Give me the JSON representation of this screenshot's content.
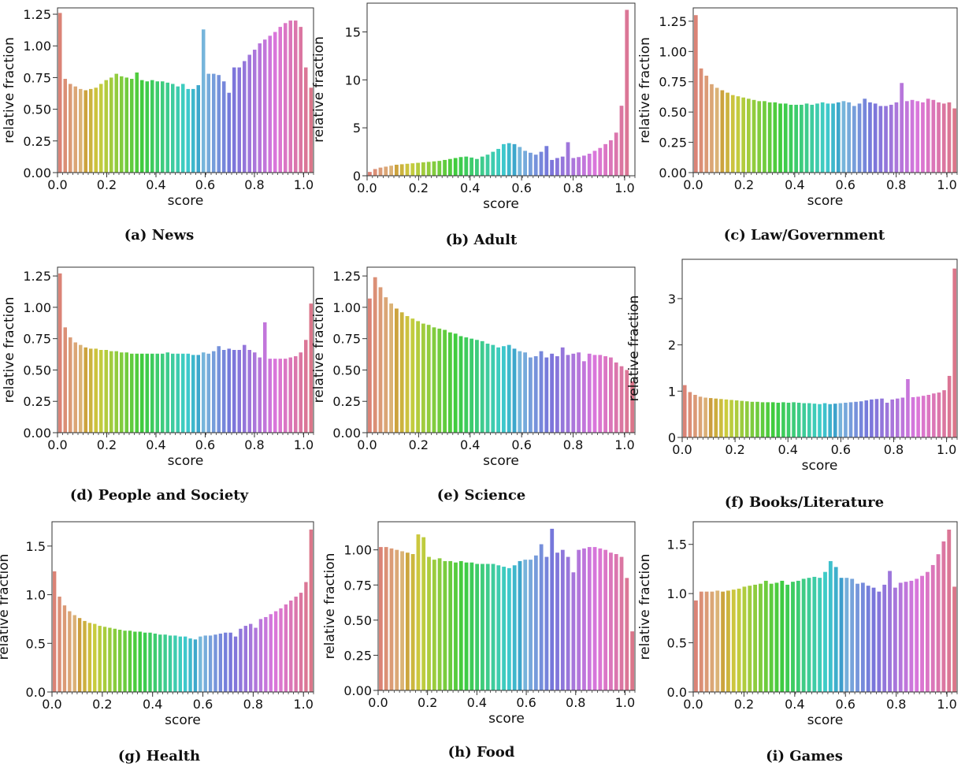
{
  "figure": {
    "xlabel": "score",
    "ylabel": "relative fraction",
    "captions": [
      "(a) News",
      "(b) Adult",
      "(c) Law/Government",
      "(d) People and Society",
      "(e) Science",
      "(f) Books/Literature",
      "(g) Health",
      "(h) Food",
      "(i) Games"
    ]
  },
  "chart_data": [
    {
      "type": "bar",
      "title": "(a) News",
      "xlabel": "score",
      "ylabel": "relative fraction",
      "xlim": [
        0,
        1.04
      ],
      "ylim": [
        0,
        1.3
      ],
      "xticks": [
        0.0,
        0.2,
        0.4,
        0.6,
        0.8,
        1.0
      ],
      "xtick_labels": [
        "0.0",
        "0.2",
        "0.4",
        "0.6",
        "0.8",
        "1.0"
      ],
      "yticks": [
        0,
        0.25,
        0.5,
        0.75,
        1.0,
        1.25
      ],
      "ytick_labels": [
        "0.00",
        "0.25",
        "0.50",
        "0.75",
        "1.00",
        "1.25"
      ],
      "values": [
        1.26,
        0.74,
        0.7,
        0.68,
        0.66,
        0.65,
        0.66,
        0.67,
        0.7,
        0.73,
        0.75,
        0.78,
        0.76,
        0.75,
        0.74,
        0.79,
        0.73,
        0.72,
        0.73,
        0.72,
        0.72,
        0.71,
        0.7,
        0.68,
        0.7,
        0.66,
        0.66,
        0.69,
        1.13,
        0.78,
        0.78,
        0.77,
        0.72,
        0.63,
        0.83,
        0.83,
        0.88,
        0.93,
        0.97,
        1.02,
        1.05,
        1.08,
        1.11,
        1.15,
        1.18,
        1.2,
        1.2,
        1.15,
        0.83,
        0.67
      ]
    },
    {
      "type": "bar",
      "title": "(b) Adult",
      "xlabel": "score",
      "ylabel": "relative fraction",
      "xlim": [
        0,
        1.04
      ],
      "ylim": [
        0,
        18
      ],
      "xticks": [
        0.0,
        0.2,
        0.4,
        0.6,
        0.8,
        1.0
      ],
      "xtick_labels": [
        "0.0",
        "0.2",
        "0.4",
        "0.6",
        "0.8",
        "1.0"
      ],
      "yticks": [
        0,
        5,
        10,
        15
      ],
      "ytick_labels": [
        "0",
        "5",
        "10",
        "15"
      ],
      "values": [
        0.4,
        0.7,
        0.85,
        0.95,
        1.05,
        1.15,
        1.2,
        1.25,
        1.3,
        1.35,
        1.4,
        1.45,
        1.5,
        1.55,
        1.65,
        1.75,
        1.85,
        1.95,
        2.0,
        1.9,
        1.75,
        2.0,
        2.2,
        2.5,
        2.8,
        3.3,
        3.4,
        3.3,
        3.0,
        2.6,
        2.4,
        2.2,
        2.5,
        3.1,
        1.65,
        1.85,
        2.0,
        3.5,
        1.85,
        1.95,
        2.1,
        2.3,
        2.6,
        2.9,
        3.3,
        3.7,
        4.5,
        7.3,
        17.3,
        0
      ]
    },
    {
      "type": "bar",
      "title": "(c) Law/Government",
      "xlabel": "score",
      "ylabel": "relative fraction",
      "xlim": [
        0,
        1.04
      ],
      "ylim": [
        0,
        1.36
      ],
      "xticks": [
        0.0,
        0.2,
        0.4,
        0.6,
        0.8,
        1.0
      ],
      "xtick_labels": [
        "0.0",
        "0.2",
        "0.4",
        "0.6",
        "0.8",
        "1.0"
      ],
      "yticks": [
        0,
        0.25,
        0.5,
        0.75,
        1.0,
        1.25
      ],
      "ytick_labels": [
        "0.00",
        "0.25",
        "0.50",
        "0.75",
        "1.00",
        "1.25"
      ],
      "values": [
        1.3,
        0.86,
        0.8,
        0.73,
        0.7,
        0.68,
        0.66,
        0.64,
        0.63,
        0.62,
        0.61,
        0.6,
        0.59,
        0.59,
        0.58,
        0.58,
        0.57,
        0.57,
        0.56,
        0.56,
        0.56,
        0.57,
        0.56,
        0.57,
        0.58,
        0.57,
        0.57,
        0.58,
        0.59,
        0.58,
        0.55,
        0.57,
        0.61,
        0.58,
        0.57,
        0.55,
        0.55,
        0.56,
        0.58,
        0.74,
        0.59,
        0.6,
        0.59,
        0.58,
        0.61,
        0.6,
        0.58,
        0.57,
        0.58,
        0.53
      ]
    },
    {
      "type": "bar",
      "title": "(d) People and Society",
      "xlabel": "score",
      "ylabel": "relative fraction",
      "xlim": [
        0,
        1.04
      ],
      "ylim": [
        0,
        1.32
      ],
      "xticks": [
        0.0,
        0.2,
        0.4,
        0.6,
        0.8,
        1.0
      ],
      "xtick_labels": [
        "0.0",
        "0.2",
        "0.4",
        "0.6",
        "0.8",
        "1.0"
      ],
      "yticks": [
        0,
        0.25,
        0.5,
        0.75,
        1.0,
        1.25
      ],
      "ytick_labels": [
        "0.00",
        "0.25",
        "0.50",
        "0.75",
        "1.00",
        "1.25"
      ],
      "values": [
        1.27,
        0.84,
        0.76,
        0.72,
        0.7,
        0.68,
        0.67,
        0.67,
        0.66,
        0.66,
        0.65,
        0.65,
        0.64,
        0.64,
        0.63,
        0.63,
        0.63,
        0.63,
        0.63,
        0.63,
        0.63,
        0.64,
        0.63,
        0.63,
        0.63,
        0.63,
        0.62,
        0.62,
        0.64,
        0.63,
        0.65,
        0.69,
        0.66,
        0.67,
        0.66,
        0.66,
        0.7,
        0.66,
        0.64,
        0.6,
        0.88,
        0.59,
        0.59,
        0.59,
        0.59,
        0.6,
        0.61,
        0.64,
        0.74,
        1.03
      ]
    },
    {
      "type": "bar",
      "title": "(e) Science",
      "xlabel": "score",
      "ylabel": "relative fraction",
      "xlim": [
        0,
        1.04
      ],
      "ylim": [
        0,
        1.32
      ],
      "xticks": [
        0.0,
        0.2,
        0.4,
        0.6,
        0.8,
        1.0
      ],
      "xtick_labels": [
        "0.0",
        "0.2",
        "0.4",
        "0.6",
        "0.8",
        "1.0"
      ],
      "yticks": [
        0,
        0.25,
        0.5,
        0.75,
        1.0,
        1.25
      ],
      "ytick_labels": [
        "0.00",
        "0.25",
        "0.50",
        "0.75",
        "1.00",
        "1.25"
      ],
      "values": [
        1.07,
        1.24,
        1.16,
        1.08,
        1.03,
        0.99,
        0.96,
        0.93,
        0.91,
        0.89,
        0.87,
        0.86,
        0.84,
        0.83,
        0.82,
        0.8,
        0.79,
        0.77,
        0.76,
        0.75,
        0.74,
        0.73,
        0.71,
        0.7,
        0.68,
        0.69,
        0.7,
        0.67,
        0.65,
        0.64,
        0.6,
        0.61,
        0.65,
        0.6,
        0.63,
        0.61,
        0.68,
        0.62,
        0.63,
        0.64,
        0.57,
        0.63,
        0.62,
        0.62,
        0.61,
        0.6,
        0.56,
        0.53,
        0.5,
        0.41
      ]
    },
    {
      "type": "bar",
      "title": "(f) Books/Literature",
      "xlabel": "score",
      "ylabel": "relative fraction",
      "xlim": [
        0,
        1.04
      ],
      "ylim": [
        0,
        3.85
      ],
      "xticks": [
        0.0,
        0.2,
        0.4,
        0.6,
        0.8,
        1.0
      ],
      "xtick_labels": [
        "0.0",
        "0.2",
        "0.4",
        "0.6",
        "0.8",
        "1.0"
      ],
      "yticks": [
        0,
        1,
        2,
        3
      ],
      "ytick_labels": [
        "0",
        "1",
        "2",
        "3"
      ],
      "values": [
        1.13,
        0.98,
        0.92,
        0.88,
        0.86,
        0.85,
        0.84,
        0.83,
        0.82,
        0.81,
        0.8,
        0.79,
        0.78,
        0.77,
        0.77,
        0.76,
        0.76,
        0.76,
        0.75,
        0.76,
        0.75,
        0.76,
        0.75,
        0.74,
        0.74,
        0.73,
        0.72,
        0.74,
        0.72,
        0.73,
        0.74,
        0.75,
        0.76,
        0.77,
        0.78,
        0.8,
        0.82,
        0.83,
        0.84,
        0.75,
        0.82,
        0.84,
        0.86,
        1.26,
        0.87,
        0.88,
        0.9,
        0.92,
        0.95,
        0.97,
        1.02,
        1.33,
        3.65
      ]
    },
    {
      "type": "bar",
      "title": "(g) Health",
      "xlabel": "score",
      "ylabel": "relative fraction",
      "xlim": [
        0,
        1.04
      ],
      "ylim": [
        0,
        1.75
      ],
      "xticks": [
        0.0,
        0.2,
        0.4,
        0.6,
        0.8,
        1.0
      ],
      "xtick_labels": [
        "0.0",
        "0.2",
        "0.4",
        "0.6",
        "0.8",
        "1.0"
      ],
      "yticks": [
        0,
        0.5,
        1.0,
        1.5
      ],
      "ytick_labels": [
        "0.0",
        "0.5",
        "1.0",
        "1.5"
      ],
      "values": [
        1.24,
        0.98,
        0.89,
        0.83,
        0.79,
        0.76,
        0.73,
        0.71,
        0.7,
        0.68,
        0.67,
        0.66,
        0.65,
        0.64,
        0.63,
        0.63,
        0.62,
        0.62,
        0.61,
        0.61,
        0.6,
        0.59,
        0.59,
        0.58,
        0.58,
        0.57,
        0.57,
        0.55,
        0.54,
        0.57,
        0.58,
        0.58,
        0.59,
        0.6,
        0.61,
        0.61,
        0.57,
        0.65,
        0.68,
        0.7,
        0.66,
        0.75,
        0.77,
        0.8,
        0.83,
        0.86,
        0.9,
        0.94,
        0.98,
        1.02,
        1.13,
        1.67
      ]
    },
    {
      "type": "bar",
      "title": "(h) Food",
      "xlabel": "score",
      "ylabel": "relative fraction",
      "xlim": [
        0,
        1.04
      ],
      "ylim": [
        0,
        1.2
      ],
      "xticks": [
        0.0,
        0.2,
        0.4,
        0.6,
        0.8,
        1.0
      ],
      "xtick_labels": [
        "0.0",
        "0.2",
        "0.4",
        "0.6",
        "0.8",
        "1.0"
      ],
      "yticks": [
        0,
        0.25,
        0.5,
        0.75,
        1.0
      ],
      "ytick_labels": [
        "0.00",
        "0.25",
        "0.50",
        "0.75",
        "1.00"
      ],
      "values": [
        1.02,
        1.02,
        1.01,
        1.0,
        0.99,
        0.98,
        0.97,
        1.11,
        1.09,
        0.95,
        0.93,
        0.94,
        0.92,
        0.92,
        0.91,
        0.92,
        0.91,
        0.91,
        0.9,
        0.9,
        0.9,
        0.9,
        0.89,
        0.88,
        0.87,
        0.89,
        0.92,
        0.93,
        0.93,
        0.96,
        1.04,
        0.95,
        1.15,
        0.98,
        1.0,
        0.95,
        0.84,
        1.0,
        1.01,
        1.02,
        1.02,
        1.01,
        1.0,
        0.98,
        0.97,
        0.95,
        0.8,
        0.42
      ]
    },
    {
      "type": "bar",
      "title": "(i) Games",
      "xlabel": "score",
      "ylabel": "relative fraction",
      "xlim": [
        0,
        1.04
      ],
      "ylim": [
        0,
        1.73
      ],
      "xticks": [
        0.0,
        0.2,
        0.4,
        0.6,
        0.8,
        1.0
      ],
      "xtick_labels": [
        "0.0",
        "0.2",
        "0.4",
        "0.6",
        "0.8",
        "1.0"
      ],
      "yticks": [
        0,
        0.5,
        1.0,
        1.5
      ],
      "ytick_labels": [
        "0.0",
        "0.5",
        "1.0",
        "1.5"
      ],
      "values": [
        0.93,
        1.02,
        1.02,
        1.02,
        1.03,
        1.02,
        1.03,
        1.04,
        1.05,
        1.07,
        1.08,
        1.09,
        1.1,
        1.13,
        1.1,
        1.11,
        1.13,
        1.09,
        1.12,
        1.13,
        1.15,
        1.16,
        1.17,
        1.16,
        1.22,
        1.33,
        1.27,
        1.16,
        1.16,
        1.15,
        1.1,
        1.11,
        1.08,
        1.06,
        1.02,
        1.09,
        1.23,
        1.06,
        1.11,
        1.12,
        1.13,
        1.15,
        1.18,
        1.22,
        1.29,
        1.4,
        1.53,
        1.65,
        1.07
      ]
    }
  ]
}
